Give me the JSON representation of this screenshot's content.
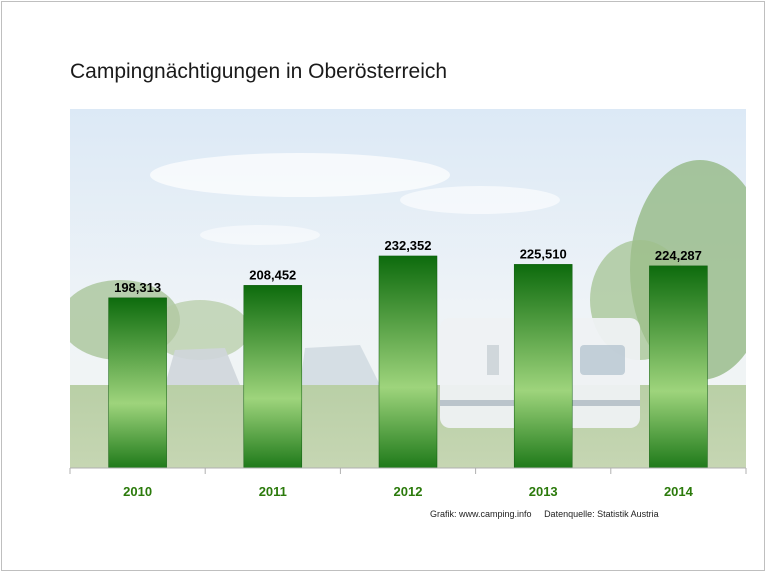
{
  "title": "Campingnächtigungen in Oberösterreich",
  "source": {
    "grafik": "Grafik: www.camping.info",
    "datenquelle": "Datenquelle: Statistik Austria"
  },
  "colors": {
    "bar_dark": "#0d6b0d",
    "bar_light": "#9ed47c",
    "axis_label": "#2b7a0b",
    "value_label": "#000000"
  },
  "chart_data": {
    "type": "bar",
    "title": "Campingnächtigungen in Oberösterreich",
    "xlabel": "",
    "ylabel": "",
    "categories": [
      "2010",
      "2011",
      "2012",
      "2013",
      "2014"
    ],
    "values": [
      198313,
      208452,
      232352,
      225510,
      224287
    ],
    "value_labels": [
      "198,313",
      "208,452",
      "232,352",
      "225,510",
      "224,287"
    ],
    "ylim": [
      0,
      240000
    ],
    "grid": false,
    "legend": "none",
    "background": "photo of camping site with caravans"
  }
}
